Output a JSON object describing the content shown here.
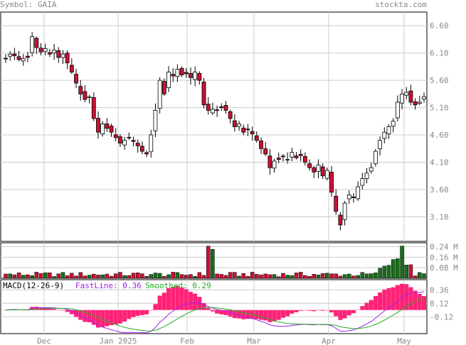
{
  "header": {
    "symbol_label": "Symbol: GAIA",
    "site": "stockta.com"
  },
  "colors": {
    "up": "#ffffff",
    "down": "#cc1133",
    "vol_up": "#1a6e1a",
    "vol_down": "#cc1133",
    "grid": "#cccccc",
    "frame": "#000000",
    "text": "#888888",
    "fast": "#a020f0",
    "smooth": "#22aa22",
    "hist": "#ff2277"
  },
  "chart_data": [
    {
      "type": "candlestick",
      "title": "Symbol: GAIA",
      "x_labels": [
        "Dec",
        "Jan 2025",
        "Feb",
        "Mar",
        "Apr",
        "May"
      ],
      "ylim": [
        2.65,
        6.85
      ],
      "y_ticks": [
        "6.60",
        "6.10",
        "5.60",
        "5.10",
        "4.60",
        "4.10",
        "3.60",
        "3.10"
      ],
      "close": [
        6.0,
        6.08,
        6.05,
        5.98,
        6.0,
        6.02,
        6.4,
        6.2,
        6.12,
        6.18,
        6.08,
        6.15,
        6.02,
        6.08,
        5.92,
        5.75,
        5.55,
        5.35,
        5.25,
        5.3,
        4.9,
        4.65,
        4.8,
        4.72,
        4.65,
        4.55,
        4.45,
        4.5,
        4.55,
        4.48,
        4.4,
        4.3,
        4.25,
        4.6,
        5.05,
        5.6,
        5.35,
        5.75,
        5.68,
        5.8,
        5.7,
        5.72,
        5.65,
        5.75,
        5.6,
        5.15,
        5.05,
        5.07,
        5.05,
        5.1,
        5.05,
        4.9,
        4.75,
        4.8,
        4.65,
        4.7,
        4.62,
        4.5,
        4.35,
        4.25,
        4.0,
        4.12,
        4.15,
        4.2,
        4.15,
        4.28,
        4.18,
        4.22,
        4.1,
        4.0,
        3.92,
        4.05,
        3.85,
        3.95,
        3.55,
        3.2,
        2.95,
        3.35,
        3.5,
        3.45,
        3.65,
        3.8,
        3.9,
        4.0,
        4.3,
        4.5,
        4.65,
        4.75,
        4.85,
        5.2,
        5.35,
        5.38,
        5.2,
        5.15,
        5.2,
        5.3
      ],
      "volume_labels": [
        "0.24 M",
        "0.16 M",
        "0.08 M"
      ],
      "volume_ylim": [
        0,
        0.27
      ]
    },
    {
      "type": "line",
      "title": "MACD(12-26-9)",
      "series": [
        {
          "name": "FastLine",
          "last_value": "0.36"
        },
        {
          "name": "Smoothed",
          "last_value": "0.29"
        }
      ],
      "y_ticks": [
        "0.36",
        "0.12",
        "-0.12"
      ],
      "ylim": [
        -0.42,
        0.54
      ]
    }
  ]
}
